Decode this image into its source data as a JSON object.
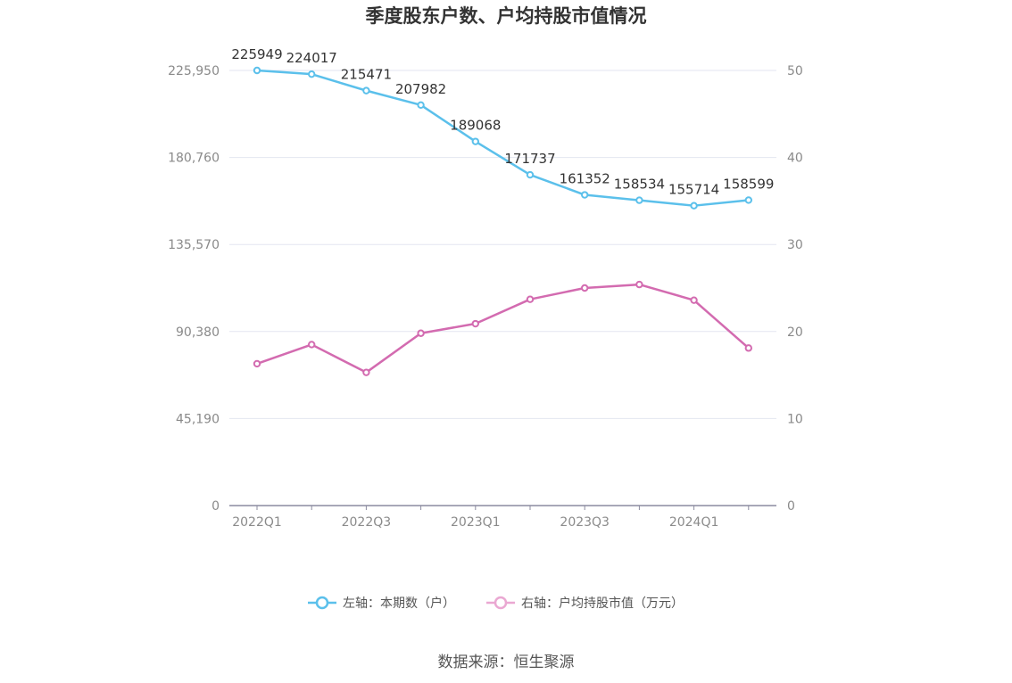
{
  "chart_data": {
    "type": "line",
    "title": "季度股东户数、户均持股市值情况",
    "categories": [
      "2022Q1",
      "2022Q2",
      "2022Q3",
      "2022Q4",
      "2023Q1",
      "2023Q2",
      "2023Q3",
      "2023Q4",
      "2024Q1",
      "2024Q2"
    ],
    "x_tick_labels": [
      "2022Q1",
      "2022Q3",
      "2023Q1",
      "2023Q3",
      "2024Q1"
    ],
    "left_axis": {
      "ticks": [
        "0",
        "45,190",
        "90,380",
        "135,570",
        "180,760",
        "225,950"
      ],
      "ylim": [
        0,
        225950
      ]
    },
    "right_axis": {
      "ticks": [
        "0",
        "10",
        "20",
        "30",
        "40",
        "50"
      ],
      "ylim": [
        0,
        50
      ]
    },
    "series": [
      {
        "name": "左轴：本期数（户）",
        "axis": "left",
        "color": "#5bc0eb",
        "values": [
          225949,
          224017,
          215471,
          207982,
          189068,
          171737,
          161352,
          158534,
          155714,
          158599
        ],
        "labels": [
          "225949",
          "224017",
          "215471",
          "207982",
          "189068",
          "171737",
          "161352",
          "158534",
          "155714",
          "158599"
        ]
      },
      {
        "name": "右轴：户均持股市值（万元）",
        "axis": "right",
        "color": "#d36bb0",
        "values": [
          16.3,
          18.5,
          15.3,
          19.8,
          20.9,
          23.7,
          25.0,
          25.4,
          23.6,
          18.1
        ]
      }
    ],
    "grid": true,
    "legend_position": "bottom"
  },
  "source_text": "数据来源：恒生聚源"
}
